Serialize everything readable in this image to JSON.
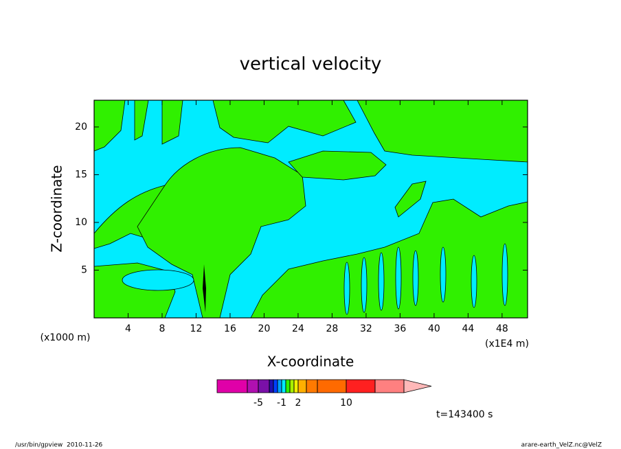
{
  "chart_data": {
    "type": "contour",
    "title": "vertical velocity",
    "xlabel": "X-coordinate",
    "ylabel": "Z-coordinate",
    "xunit": "(x1000 m)",
    "xunit2": "(x1E4 m)",
    "xlim": [
      0,
      51
    ],
    "ylim": [
      0,
      22.8
    ],
    "xticks": [
      4,
      8,
      12,
      16,
      20,
      24,
      28,
      32,
      36,
      40,
      44,
      48
    ],
    "yticks": [
      5,
      10,
      15,
      20
    ],
    "colorbar": {
      "levels": [
        -10,
        -5,
        -4,
        -3,
        -2,
        -1,
        0,
        0.5,
        1,
        2,
        4,
        6,
        10,
        15,
        20
      ],
      "colors": [
        "#e000a8",
        "#b010b0",
        "#7a10a8",
        "#2010b0",
        "#0040ff",
        "#00a0ff",
        "#00ecff",
        "#30f000",
        "#a8f000",
        "#f0f000",
        "#ffb000",
        "#ff7a00",
        "#ff6a00",
        "#ff2020",
        "#ff8080",
        "#ffb8b8"
      ],
      "ticks": [
        -5,
        -1,
        2,
        10
      ]
    },
    "time_label": "t=143400 s",
    "footer_left": "/usr/bin/gpview  2010-11-26",
    "footer_right": "arare-earth_VelZ.nc@VelZ"
  }
}
